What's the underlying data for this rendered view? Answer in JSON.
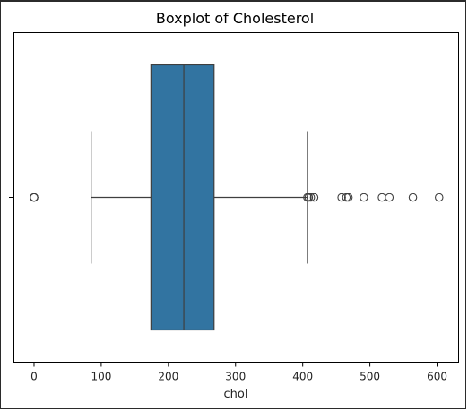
{
  "chart_data": {
    "type": "box",
    "title": "Boxplot of Cholesterol",
    "xlabel": "chol",
    "ylabel": "",
    "xlim": [
      -30,
      632
    ],
    "xticks": [
      0,
      100,
      200,
      300,
      400,
      500,
      600
    ],
    "box": {
      "whisker_low": 85,
      "q1": 174,
      "median": 223,
      "q3": 268,
      "whisker_high": 407
    },
    "outliers": [
      0,
      0,
      0,
      0,
      0,
      407,
      409,
      412,
      417,
      458,
      465,
      468,
      491,
      518,
      529,
      564,
      603
    ],
    "colors": {
      "box_fill": "#3274a1",
      "line": "#3f3f3f",
      "frame": "#000000"
    }
  }
}
